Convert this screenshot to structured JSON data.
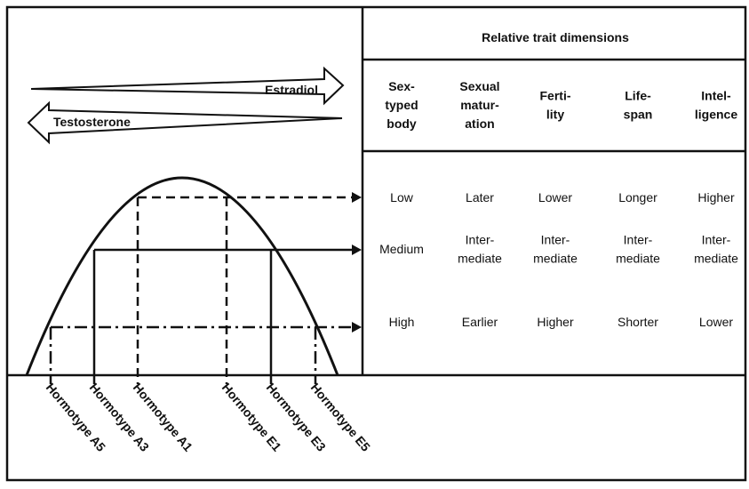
{
  "header": {
    "title": "Relative trait dimensions"
  },
  "columns": [
    [
      "Sex-",
      "typed",
      "body"
    ],
    [
      "Sexual",
      "matur-",
      "ation"
    ],
    [
      "Ferti-",
      "lity"
    ],
    [
      "Life-",
      "span"
    ],
    [
      "Intel-",
      "ligence"
    ]
  ],
  "rows": [
    [
      [
        "Low"
      ],
      [
        "Later"
      ],
      [
        "Lower"
      ],
      [
        "Longer"
      ],
      [
        "Higher"
      ]
    ],
    [
      [
        "Medium"
      ],
      [
        "Inter-",
        "mediate"
      ],
      [
        "Inter-",
        "mediate"
      ],
      [
        "Inter-",
        "mediate"
      ],
      [
        "Inter-",
        "mediate"
      ]
    ],
    [
      [
        "High"
      ],
      [
        "Earlier"
      ],
      [
        "Higher"
      ],
      [
        "Shorter"
      ],
      [
        "Lower"
      ]
    ]
  ],
  "arrows": {
    "estradiol": "Estradiol",
    "testosterone": "Testosterone"
  },
  "hormotypes": [
    "Hormotype A5",
    "Hormotype A3",
    "Hormotype A1",
    "Hormotype E1",
    "Hormotype E3",
    "Hormotype E5"
  ]
}
